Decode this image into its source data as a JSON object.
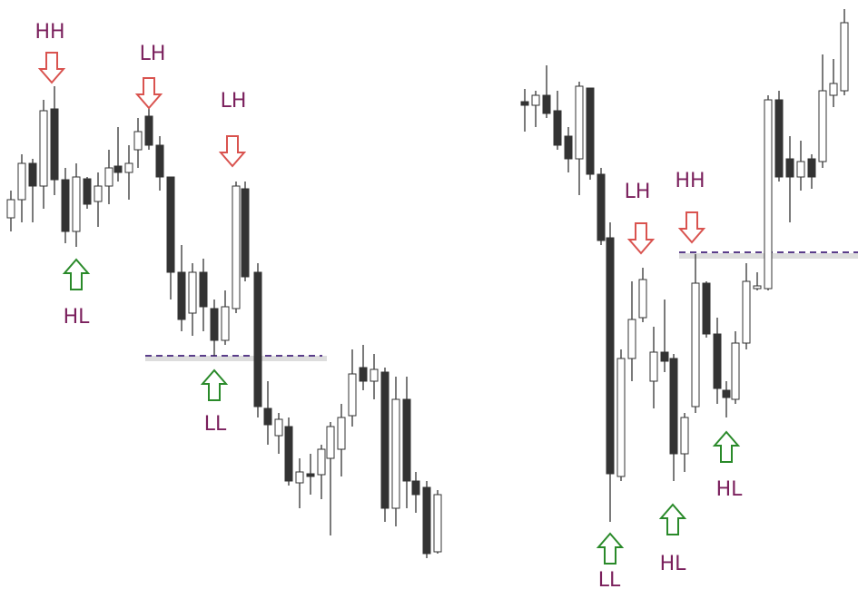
{
  "annotations": [
    {
      "label": "HH"
    },
    {
      "label": "LH"
    },
    {
      "label": "LH"
    },
    {
      "label": "HL"
    },
    {
      "label": "LL"
    },
    {
      "label": "LH"
    },
    {
      "label": "HH"
    },
    {
      "label": "LL"
    },
    {
      "label": "HL"
    },
    {
      "label": "HL"
    }
  ]
}
